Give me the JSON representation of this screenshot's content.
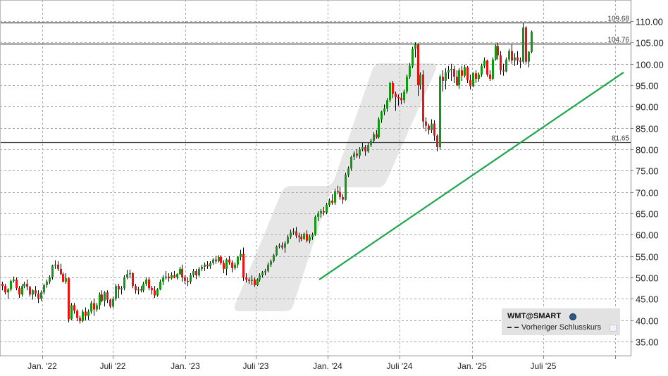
{
  "chart_data": {
    "type": "candlestick",
    "title": "",
    "symbol": "WMT@SMART",
    "xlabel": "",
    "ylabel": "",
    "ylim": [
      32,
      112
    ],
    "grid": true,
    "y_ticks": [
      "110.00",
      "105.00",
      "100.00",
      "95.00",
      "90.00",
      "85.00",
      "80.00",
      "75.00",
      "70.00",
      "65.00",
      "60.00",
      "55.00",
      "50.00",
      "45.00",
      "40.00",
      "35.00"
    ],
    "x_ticks": [
      "Jan. '22",
      "Juli '22",
      "Jan. '23",
      "Juli '23",
      "Jan. '24",
      "Juli '24",
      "Jan. '25",
      "Juli '25"
    ],
    "horizontal_levels": [
      {
        "value": 109.68,
        "label": "109.68"
      },
      {
        "value": 104.76,
        "label": "104.76"
      },
      {
        "value": 81.65,
        "label": "81.65"
      }
    ],
    "trendline": {
      "from": {
        "date": "2023-12-18",
        "value": 49.5
      },
      "to": {
        "date": "2025-12-01",
        "value": 98.0
      },
      "color": "#1aa64a"
    },
    "legend": [
      {
        "label": "WMT@SMART",
        "icon": "globe-icon"
      },
      {
        "label": "Vorheriger Schlusskurs",
        "style": "dashed"
      }
    ],
    "colors": {
      "up": "#129812",
      "down": "#ee1111",
      "wick": "#000000",
      "level": "#333333",
      "trend": "#1aa64a",
      "grid": "#aaaaaa"
    },
    "ohlc_note": "Weekly candles, approximate values read from the chart; each entry [open, high, low, close]",
    "start_x": 2,
    "step_x": 3.93,
    "ohlc": [
      [
        48.5,
        49,
        47,
        48
      ],
      [
        48,
        48.5,
        46,
        46.5
      ],
      [
        46.5,
        47.5,
        45,
        47.2
      ],
      [
        47.2,
        49.5,
        46.8,
        49.2
      ],
      [
        49.2,
        50.2,
        48.8,
        49.5
      ],
      [
        49.5,
        50,
        47,
        47.5
      ],
      [
        47.5,
        48,
        45.2,
        46
      ],
      [
        46,
        48.5,
        45.5,
        48
      ],
      [
        48,
        49,
        47.5,
        48.5
      ],
      [
        48.5,
        49.5,
        47,
        47.8
      ],
      [
        47.8,
        48,
        45.5,
        46
      ],
      [
        46,
        47.2,
        44.8,
        47
      ],
      [
        47,
        48,
        45.5,
        46.2
      ],
      [
        46.2,
        47,
        44,
        45
      ],
      [
        45,
        47,
        44.5,
        46.5
      ],
      [
        46.5,
        48.5,
        46,
        48.2
      ],
      [
        48.2,
        49.5,
        47.6,
        49
      ],
      [
        49,
        50.5,
        48.5,
        50
      ],
      [
        50,
        53,
        49.5,
        52.8
      ],
      [
        52.8,
        54,
        52,
        53
      ],
      [
        53,
        53.8,
        51.5,
        52
      ],
      [
        52,
        53.2,
        50.5,
        50.8
      ],
      [
        50.8,
        51.2,
        48.8,
        49
      ],
      [
        49,
        51,
        48.5,
        49.8
      ],
      [
        49.8,
        50,
        39.5,
        40.2
      ],
      [
        40.2,
        44,
        40,
        43.5
      ],
      [
        43.5,
        44,
        41.5,
        42.2
      ],
      [
        42.2,
        42.5,
        39.8,
        40.5
      ],
      [
        40.5,
        41,
        39.2,
        39.8
      ],
      [
        39.8,
        42.5,
        39.5,
        42
      ],
      [
        42,
        43,
        40,
        41
      ],
      [
        41,
        42.5,
        40,
        42
      ],
      [
        42,
        44.5,
        41.5,
        44
      ],
      [
        44,
        45,
        41,
        42.5
      ],
      [
        42.5,
        44,
        42,
        43.5
      ],
      [
        43.5,
        46.5,
        42.5,
        46
      ],
      [
        46,
        47,
        44.2,
        44.5
      ],
      [
        44.5,
        46.8,
        43.2,
        46.5
      ],
      [
        46.5,
        47,
        44,
        44.8
      ],
      [
        44.8,
        45,
        42.8,
        43.2
      ],
      [
        43.2,
        45.5,
        42.8,
        45
      ],
      [
        45,
        48.5,
        44.5,
        48
      ],
      [
        48,
        48.5,
        45.2,
        47.2
      ],
      [
        47.2,
        48,
        46,
        47.5
      ],
      [
        47.5,
        50.5,
        47,
        50
      ],
      [
        50,
        51.8,
        49.6,
        50.8
      ],
      [
        50.8,
        51.8,
        49.8,
        51
      ],
      [
        51,
        51.2,
        47.5,
        48
      ],
      [
        48,
        48.5,
        46.2,
        47
      ],
      [
        47,
        47.8,
        46,
        47.2
      ],
      [
        47.2,
        48,
        46.5,
        47
      ],
      [
        47,
        49,
        46.5,
        48.5
      ],
      [
        48.5,
        50,
        48,
        49.5
      ],
      [
        49.5,
        50,
        47,
        47.5
      ],
      [
        47.5,
        48,
        46,
        47
      ],
      [
        47,
        48,
        45.2,
        45.8
      ],
      [
        45.8,
        47.5,
        45.5,
        47.2
      ],
      [
        47.2,
        49.5,
        47,
        49
      ],
      [
        49,
        50.5,
        48.2,
        50
      ],
      [
        50,
        51.5,
        49.5,
        50.2
      ],
      [
        50.2,
        51,
        49,
        49.8
      ],
      [
        49.8,
        51.2,
        49.5,
        50.5
      ],
      [
        50.5,
        51.5,
        49.8,
        50
      ],
      [
        50,
        51,
        49.5,
        50.8
      ],
      [
        50.8,
        52.5,
        50.5,
        52
      ],
      [
        52,
        53,
        49,
        50
      ],
      [
        50,
        50.5,
        48.5,
        49.2
      ],
      [
        49.2,
        50,
        48,
        49
      ],
      [
        49,
        51,
        48.5,
        50.5
      ],
      [
        50.5,
        52,
        50,
        51.5
      ],
      [
        51.5,
        52,
        49.6,
        50.5
      ],
      [
        50.5,
        52.5,
        50.2,
        52
      ],
      [
        52,
        53,
        51.5,
        52.5
      ],
      [
        52.5,
        53.5,
        51.5,
        53
      ],
      [
        53,
        53.8,
        52,
        52.6
      ],
      [
        52.6,
        53.8,
        52,
        53.4
      ],
      [
        53.4,
        54.5,
        53,
        54.2
      ],
      [
        54.2,
        55,
        53.2,
        53.8
      ],
      [
        53.8,
        55.2,
        53.5,
        54.8
      ],
      [
        54.8,
        55.2,
        53,
        53.4
      ],
      [
        53.4,
        54,
        51,
        52
      ],
      [
        52,
        54.5,
        50.5,
        54.2
      ],
      [
        54.2,
        55,
        53,
        53.5
      ],
      [
        53.5,
        54,
        51.2,
        52.2
      ],
      [
        52.2,
        53.5,
        51.8,
        53
      ],
      [
        53,
        55,
        52.2,
        54.8
      ],
      [
        54.8,
        56.5,
        54,
        55.5
      ],
      [
        55.5,
        57,
        49.2,
        50
      ],
      [
        50,
        51,
        48.8,
        49.5
      ],
      [
        49.5,
        50,
        48.5,
        49.2
      ],
      [
        49.2,
        50.5,
        48.2,
        49.5
      ],
      [
        49.5,
        50,
        47.8,
        48.2
      ],
      [
        48.2,
        49.8,
        48,
        49.5
      ],
      [
        49.5,
        51,
        49,
        50.5
      ],
      [
        50.5,
        51.5,
        50,
        51.2
      ],
      [
        51.2,
        52,
        50.5,
        51.5
      ],
      [
        51.5,
        53.5,
        51.2,
        53
      ],
      [
        53,
        54.2,
        52.5,
        53.8
      ],
      [
        53.8,
        55.5,
        53.5,
        55.2
      ],
      [
        55.2,
        57.5,
        55,
        57.2
      ],
      [
        57.2,
        58,
        56.8,
        57.5
      ],
      [
        57.5,
        58.2,
        56.5,
        57
      ],
      [
        57,
        58.5,
        55.8,
        58
      ],
      [
        58,
        60,
        57.8,
        59.5
      ],
      [
        59.5,
        61.2,
        59,
        60.5
      ],
      [
        60.5,
        61.5,
        60,
        60.8
      ],
      [
        60.8,
        61.8,
        59.2,
        59.8
      ],
      [
        59.8,
        60.5,
        58.2,
        59.5
      ],
      [
        59.5,
        60.2,
        58.5,
        59
      ],
      [
        59,
        60.5,
        58.8,
        60.2
      ],
      [
        60.2,
        61,
        58.2,
        58.6
      ],
      [
        58.6,
        60,
        58,
        59.5
      ],
      [
        59.5,
        60.5,
        58.8,
        60
      ],
      [
        60,
        64.5,
        59.8,
        64.2
      ],
      [
        64.2,
        65.5,
        63.2,
        65
      ],
      [
        65,
        66,
        64,
        65.5
      ],
      [
        65.5,
        66.5,
        64.5,
        65.2
      ],
      [
        65.2,
        67.5,
        64.8,
        67
      ],
      [
        67,
        68.5,
        66.5,
        68
      ],
      [
        68,
        69.5,
        67,
        67.5
      ],
      [
        67.5,
        70.8,
        67,
        70.2
      ],
      [
        70.2,
        71.5,
        69.5,
        70
      ],
      [
        70,
        71.2,
        68.2,
        68.8
      ],
      [
        68.8,
        69.5,
        67.2,
        68.2
      ],
      [
        68.2,
        74.5,
        68,
        74
      ],
      [
        74,
        76,
        73.5,
        75.5
      ],
      [
        75.5,
        78.5,
        75,
        78.2
      ],
      [
        78.2,
        79.5,
        77.5,
        79
      ],
      [
        79,
        80,
        78,
        78.5
      ],
      [
        78.5,
        80.5,
        77.8,
        80
      ],
      [
        80,
        81.5,
        79.5,
        80.5
      ],
      [
        80.5,
        81,
        78.5,
        79.5
      ],
      [
        79.5,
        81.5,
        79.2,
        81
      ],
      [
        81,
        82.5,
        80.5,
        82
      ],
      [
        82,
        84,
        81.5,
        83.5
      ],
      [
        83.5,
        84.5,
        82.5,
        82.8
      ],
      [
        82.8,
        87.5,
        82.5,
        87
      ],
      [
        87,
        89,
        86.2,
        88.8
      ],
      [
        88.8,
        90.5,
        88,
        89.5
      ],
      [
        89.5,
        92,
        88.8,
        91.5
      ],
      [
        91.5,
        95.8,
        91,
        95.5
      ],
      [
        95.5,
        96,
        92,
        93
      ],
      [
        93,
        93.5,
        89,
        92.2
      ],
      [
        92.2,
        92.8,
        90.2,
        92
      ],
      [
        92,
        93.2,
        90.5,
        91.5
      ],
      [
        91.5,
        94,
        90.8,
        93.5
      ],
      [
        93.5,
        97.5,
        93,
        97
      ],
      [
        97,
        100.2,
        96.5,
        99.5
      ],
      [
        99.5,
        104,
        99,
        103.5
      ],
      [
        103.5,
        105,
        101.5,
        104.5
      ],
      [
        104.5,
        104.8,
        92.5,
        95
      ],
      [
        95,
        98,
        94,
        97.5
      ],
      [
        97.5,
        98.5,
        85,
        86.5
      ],
      [
        86.5,
        87.5,
        84.2,
        85.5
      ],
      [
        85.5,
        86,
        83.5,
        84.5
      ],
      [
        84.5,
        87,
        83.8,
        86
      ],
      [
        86,
        86.8,
        82,
        83.2
      ],
      [
        83.2,
        83.5,
        79.5,
        80.5
      ],
      [
        80.5,
        97.5,
        80,
        97
      ],
      [
        97,
        98.5,
        93.5,
        96
      ],
      [
        96,
        99,
        94,
        98
      ],
      [
        98,
        99.5,
        96.5,
        98.5
      ],
      [
        98.5,
        100,
        96,
        98.8
      ],
      [
        98.8,
        99.5,
        95.5,
        97
      ],
      [
        97,
        98.5,
        94.8,
        95
      ],
      [
        95,
        99,
        94.2,
        98.5
      ],
      [
        98.5,
        99.5,
        96,
        97.2
      ],
      [
        97.2,
        99.8,
        96.8,
        99.2
      ],
      [
        99.2,
        99.5,
        95.5,
        96.2
      ],
      [
        96.2,
        97.5,
        94,
        94.8
      ],
      [
        94.8,
        98,
        94.5,
        97.8
      ],
      [
        97.8,
        98.5,
        95.5,
        96.5
      ],
      [
        96.5,
        98,
        95.8,
        97.5
      ],
      [
        97.5,
        100,
        97,
        99.5
      ],
      [
        99.5,
        101.5,
        99,
        100.8
      ],
      [
        100.8,
        101,
        97,
        97.5
      ],
      [
        97.5,
        98.5,
        96,
        96.5
      ],
      [
        96.5,
        101.5,
        96.2,
        101
      ],
      [
        101,
        104.5,
        100.8,
        104.2
      ],
      [
        104.2,
        105,
        101,
        102
      ],
      [
        102,
        103,
        97.5,
        98.5
      ],
      [
        98.5,
        100,
        97.2,
        98.2
      ],
      [
        98.2,
        101.5,
        98,
        101
      ],
      [
        101,
        103.5,
        100.5,
        103
      ],
      [
        103,
        104.5,
        100,
        100.8
      ],
      [
        100.8,
        102.5,
        99.5,
        101.5
      ],
      [
        101.5,
        103,
        99.8,
        100.8
      ],
      [
        100.8,
        101.5,
        99,
        100.5
      ],
      [
        100.5,
        109.5,
        100,
        108.5
      ],
      [
        108.5,
        108.8,
        100,
        100.5
      ],
      [
        100.5,
        103,
        99.2,
        102.8
      ],
      [
        102.8,
        107.8,
        102.5,
        107.5
      ]
    ]
  },
  "legend": {
    "symbol": "WMT@SMART",
    "previous_close_label": "Vorheriger Schlusskurs"
  }
}
